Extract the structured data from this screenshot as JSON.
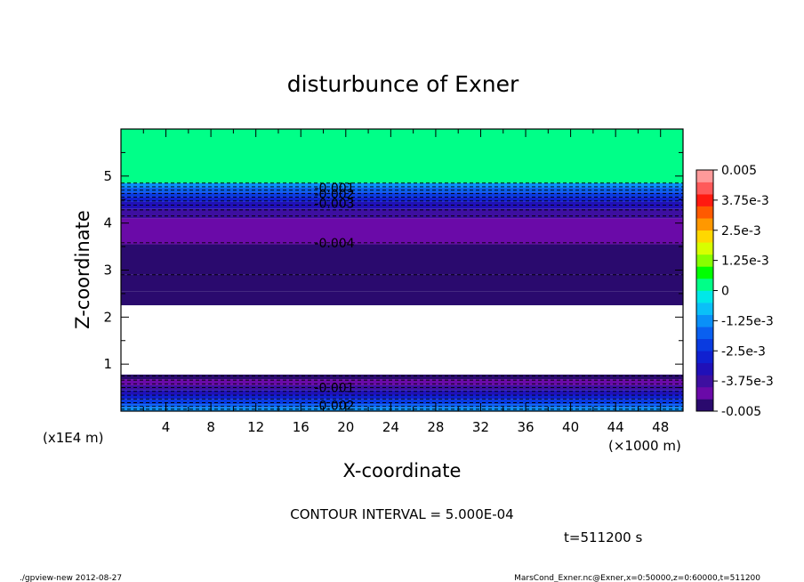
{
  "chart_data": {
    "type": "heatmap",
    "title": "disturbunce of Exner",
    "xlabel": "X-coordinate",
    "ylabel": "Z-coordinate",
    "x_unit": "(×1000 m)",
    "y_unit": "(x1E4 m)",
    "xlim": [
      0,
      50
    ],
    "ylim": [
      0,
      6
    ],
    "x_ticks": [
      4,
      8,
      12,
      16,
      20,
      24,
      28,
      32,
      36,
      40,
      44,
      48
    ],
    "y_ticks": [
      1,
      2,
      3,
      4,
      5
    ],
    "colorbar": {
      "min": -0.005,
      "max": 0.005,
      "tick_labels": [
        "0.005",
        "3.75e-3",
        "2.5e-3",
        "1.25e-3",
        "0",
        "-1.25e-3",
        "-2.5e-3",
        "-3.75e-3",
        "-0.005"
      ],
      "colors": [
        "#2a0a6e",
        "#6a0aa8",
        "#3d0fa0",
        "#2010b8",
        "#1020d0",
        "#0a3be0",
        "#0a60f0",
        "#0a90f8",
        "#0ac0f8",
        "#00e8e8",
        "#00ff88",
        "#00ff00",
        "#88ff00",
        "#d8ff00",
        "#ffd800",
        "#ff9800",
        "#ff5a00",
        "#ff1a10",
        "#ff5a5a",
        "#ff9a9a"
      ]
    },
    "contour_interval": "CONTOUR INTERVAL = 5.000E-04",
    "contour_labels": [
      "-0.001",
      "-0.002",
      "-0.003",
      "-0.004",
      "-0.001",
      "-0.002"
    ],
    "bands": [
      {
        "z0": 4.85,
        "z1": 6.0,
        "value": 0.0
      },
      {
        "z0": 4.75,
        "z1": 4.85,
        "value": -0.0011
      },
      {
        "z0": 4.65,
        "z1": 4.75,
        "value": -0.0017
      },
      {
        "z0": 4.55,
        "z1": 4.65,
        "value": -0.0022
      },
      {
        "z0": 4.45,
        "z1": 4.55,
        "value": -0.0027
      },
      {
        "z0": 4.3,
        "z1": 4.45,
        "value": -0.0032
      },
      {
        "z0": 4.1,
        "z1": 4.3,
        "value": -0.0037
      },
      {
        "z0": 3.55,
        "z1": 4.1,
        "value": -0.0042
      },
      {
        "z0": 2.9,
        "z1": 3.55,
        "value": -0.0046
      },
      {
        "z0": 2.55,
        "z1": 2.9,
        "value": -0.0048
      },
      {
        "z0": 2.25,
        "z1": 2.55,
        "value": -0.005
      },
      {
        "z0": 0.68,
        "z1": 0.78,
        "value": -0.005
      },
      {
        "z0": 0.55,
        "z1": 0.68,
        "value": -0.0045
      },
      {
        "z0": 0.45,
        "z1": 0.55,
        "value": -0.004
      },
      {
        "z0": 0.35,
        "z1": 0.45,
        "value": -0.0035
      },
      {
        "z0": 0.25,
        "z1": 0.35,
        "value": -0.003
      },
      {
        "z0": 0.15,
        "z1": 0.25,
        "value": -0.0025
      },
      {
        "z0": 0.08,
        "z1": 0.15,
        "value": -0.002
      },
      {
        "z0": 0.0,
        "z1": 0.08,
        "value": -0.0015
      }
    ],
    "contour_levels_z": [
      4.85,
      4.77,
      4.7,
      4.63,
      4.55,
      4.47,
      4.38,
      4.28,
      4.15,
      3.58,
      2.9,
      0.75,
      0.66,
      0.58,
      0.5,
      0.42,
      0.34,
      0.26,
      0.18,
      0.1,
      0.04
    ],
    "time_label": "t=511200 s"
  },
  "footer": {
    "left": "./gpview-new   2012-08-27",
    "right": "MarsCond_Exner.nc@Exner,x=0:50000,z=0:60000,t=511200"
  }
}
